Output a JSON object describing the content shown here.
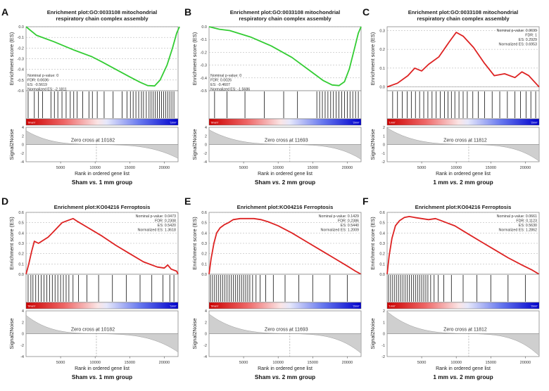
{
  "chart_data": [
    {
      "type": "line",
      "panel_label": "A",
      "title": [
        "Enrichment plot:GO:0033108 mitochondrial",
        "respiratory chain complex assembly"
      ],
      "ylabel": "Enrichment score (ES)",
      "ylim": [
        -0.6,
        0.0
      ],
      "yticks": [
        "0.0",
        "-0.1",
        "-0.2",
        "-0.3",
        "-0.4",
        "-0.5",
        "-0.6"
      ],
      "curve_color": "#33cc33",
      "stats_position": "bottom-left",
      "stats": [
        "Nominal p-value: 0",
        "FDR: 0.0036",
        "ES: -0.5619",
        "Normalized ES: -2.1811"
      ],
      "es_curve": {
        "x": [
          0,
          1500,
          4000,
          7000,
          9500,
          11000,
          13000,
          15000,
          16500,
          17600,
          18600,
          19400,
          20400,
          21200,
          21800,
          22200
        ],
        "y": [
          0,
          -0.08,
          -0.14,
          -0.22,
          -0.28,
          -0.33,
          -0.4,
          -0.47,
          -0.52,
          -0.552,
          -0.555,
          -0.5,
          -0.36,
          -0.2,
          -0.06,
          0
        ]
      },
      "hits": {
        "x": [
          300,
          1200,
          1800,
          2400,
          3600,
          4100,
          4600,
          5200,
          5800,
          6400,
          6900,
          7400,
          8200,
          9100,
          9600,
          10300,
          11300,
          12600,
          13900,
          14600,
          15100,
          15500,
          15900,
          16300,
          16700,
          17000,
          17400,
          17800,
          18100,
          18400,
          18700,
          19000,
          19300,
          19600,
          19900,
          20200,
          20500,
          20800,
          21100,
          21400
        ]
      },
      "ranking": {
        "pos_label": "'Sham'",
        "neg_label": "'1mm'",
        "ymin": -4,
        "ymax": 4,
        "yticks": [
          "4",
          "2",
          "0",
          "-2",
          "-4"
        ],
        "max_pos": 3.0,
        "max_neg": -3.0
      },
      "zero_cross_label": "Zero cross at 10182",
      "zero_cross": 10182,
      "n_genes": 22000,
      "xlabel": "Rank in ordered gene list",
      "xticks": [
        "5000",
        "10000",
        "15000",
        "20000"
      ],
      "caption_parts": [
        "Sham ",
        "vs.",
        " 1 mm group"
      ]
    },
    {
      "type": "line",
      "panel_label": "B",
      "title": [
        "Enrichment plot:GO:0033108 mitochondrial",
        "respiratory chain complex assembly"
      ],
      "ylabel": "Enrichment score (ES)",
      "ylim": [
        -0.5,
        0.0
      ],
      "yticks": [
        "0.0",
        "-0.1",
        "-0.2",
        "-0.3",
        "-0.4",
        "-0.5"
      ],
      "curve_color": "#33cc33",
      "stats_position": "bottom-left",
      "stats": [
        "Nominal p-value: 0",
        "FDR: 0.0026",
        "ES: -0.4607",
        "Normalized ES: -1.5686"
      ],
      "es_curve": {
        "x": [
          0,
          1500,
          3000,
          6000,
          9000,
          12000,
          14500,
          16500,
          17800,
          18800,
          19600,
          20300,
          21000,
          21600,
          22000
        ],
        "y": [
          0,
          -0.02,
          -0.03,
          -0.08,
          -0.15,
          -0.24,
          -0.34,
          -0.42,
          -0.455,
          -0.46,
          -0.43,
          -0.33,
          -0.18,
          -0.05,
          0
        ]
      },
      "hits": {
        "x": [
          800,
          2600,
          5200,
          8000,
          10800,
          12800,
          15600,
          16000,
          16400,
          16800,
          17200,
          17600,
          18000,
          18400,
          18800,
          19200,
          19600,
          20000,
          20400,
          20800,
          21200,
          21600
        ]
      },
      "ranking": {
        "pos_label": "'Sham'",
        "neg_label": "'2mm'",
        "ymin": -4,
        "ymax": 4,
        "yticks": [
          "4",
          "2",
          "0",
          "-2",
          "-4"
        ],
        "max_pos": 3.2,
        "max_neg": -3.2
      },
      "zero_cross_label": "Zero cross at 11693",
      "zero_cross": 11693,
      "n_genes": 22000,
      "xlabel": "Rank in ordered gene list",
      "xticks": [
        "5000",
        "10000",
        "15000",
        "20000"
      ],
      "caption_parts": [
        "Sham ",
        "vs.",
        " 2 mm group"
      ]
    },
    {
      "type": "line",
      "panel_label": "C",
      "title": [
        "Enrichment plot:GO:0033108 mitochondrial",
        "respiratory chain complex assembly"
      ],
      "ylabel": "Enrichment score (ES)",
      "ylim": [
        -0.02,
        0.32
      ],
      "yticks": [
        "0.3",
        "0.2",
        "0.1",
        "0.0"
      ],
      "curve_color": "#dd2222",
      "stats_position": "top-right",
      "stats": [
        "Nominal p-value: 0.9699",
        "FDR: 1",
        "ES: 0.2929",
        "Normalized ES: 0.6953"
      ],
      "es_curve": {
        "x": [
          0,
          1500,
          3000,
          4000,
          5000,
          6000,
          7500,
          9000,
          10000,
          11000,
          12500,
          14000,
          15500,
          17000,
          18500,
          19500,
          20500,
          21500,
          22000
        ],
        "y": [
          0,
          0.02,
          0.06,
          0.1,
          0.085,
          0.12,
          0.16,
          0.24,
          0.29,
          0.27,
          0.21,
          0.13,
          0.06,
          0.07,
          0.05,
          0.08,
          0.06,
          0.02,
          0
        ]
      },
      "hits": {
        "x": [
          800,
          1500,
          2200,
          2900,
          3500,
          4100,
          4700,
          5300,
          5900,
          6500,
          7100,
          7700,
          8300,
          8800,
          9300,
          9800,
          10400,
          11000,
          11600,
          12400,
          13200,
          14100,
          15200,
          16300,
          17400,
          18500,
          19300,
          20100,
          20800,
          21500
        ]
      },
      "ranking": {
        "pos_label": "'1mm'",
        "neg_label": "'2mm'",
        "ymin": -2,
        "ymax": 2,
        "yticks": [
          "2",
          "1",
          "0",
          "-1",
          "-2"
        ],
        "max_pos": 1.8,
        "max_neg": -1.8
      },
      "zero_cross_label": "Zero cross at 11812",
      "zero_cross": 11812,
      "n_genes": 22000,
      "xlabel": "Rank in ordered gene list",
      "xticks": [
        "5000",
        "10000",
        "15000",
        "20000"
      ],
      "caption_parts": [
        "1 mm ",
        "vs.",
        " 2 mm group"
      ]
    },
    {
      "type": "line",
      "panel_label": "D",
      "title": [
        "Enrichment plot:KO04216 Ferroptosis"
      ],
      "ylabel": "Enrichment score (ES)",
      "ylim": [
        0.0,
        0.6
      ],
      "yticks": [
        "0.6",
        "0.5",
        "0.4",
        "0.3",
        "0.2",
        "0.1",
        "0.0"
      ],
      "curve_color": "#dd2222",
      "stats_position": "top-right",
      "stats": [
        "Nominal p-value: 0.0473",
        "FDR: 0.2308",
        "ES: 0.5420",
        "Normalized ES: 1.3618"
      ],
      "es_curve": {
        "x": [
          0,
          400,
          800,
          1200,
          1800,
          2500,
          3200,
          3800,
          4500,
          5200,
          6000,
          6800,
          7500,
          9000,
          11000,
          13000,
          15000,
          17000,
          19000,
          20000,
          20500,
          21000,
          21800,
          22000
        ],
        "y": [
          0,
          0.1,
          0.22,
          0.32,
          0.3,
          0.33,
          0.36,
          0.4,
          0.45,
          0.5,
          0.52,
          0.54,
          0.51,
          0.45,
          0.37,
          0.28,
          0.2,
          0.12,
          0.07,
          0.06,
          0.09,
          0.05,
          0.03,
          0
        ]
      },
      "hits": {
        "x": [
          300,
          700,
          1000,
          1400,
          1800,
          2200,
          2600,
          3000,
          3400,
          3800,
          4200,
          4600,
          5000,
          5400,
          5800,
          6200,
          6800,
          7600,
          8800,
          10500,
          12500,
          14500,
          16500,
          18200,
          19800,
          20800,
          21400
        ]
      },
      "ranking": {
        "pos_label": "'Sham'",
        "neg_label": "'1mm'",
        "ymin": -4,
        "ymax": 4,
        "yticks": [
          "4",
          "2",
          "0",
          "-2",
          "-4"
        ],
        "max_pos": 3.0,
        "max_neg": -3.0
      },
      "zero_cross_label": "Zero cross at 10182",
      "zero_cross": 10182,
      "n_genes": 22000,
      "xlabel": "Rank in ordered gene list",
      "xticks": [
        "5000",
        "10000",
        "15000",
        "20000"
      ],
      "caption_parts": [
        "Sham ",
        "vs.",
        " 1 mm group"
      ]
    },
    {
      "type": "line",
      "panel_label": "E",
      "title": [
        "Enrichment plot:KO04216 Ferroptosis"
      ],
      "ylabel": "Enrichment score (ES)",
      "ylim": [
        0.0,
        0.6
      ],
      "yticks": [
        "0.6",
        "0.5",
        "0.4",
        "0.3",
        "0.2",
        "0.1",
        "0.0"
      ],
      "curve_color": "#dd2222",
      "stats_position": "top-right",
      "stats": [
        "Nominal p-value: 0.1429",
        "FDR: 0.2386",
        "ES: 0.5440",
        "Normalized ES: 1.2009"
      ],
      "es_curve": {
        "x": [
          0,
          300,
          700,
          1100,
          1600,
          2200,
          2800,
          3500,
          4500,
          5500,
          6500,
          7500,
          8500,
          10000,
          12000,
          14000,
          16000,
          18000,
          20000,
          21200,
          22000
        ],
        "y": [
          0,
          0.15,
          0.3,
          0.4,
          0.45,
          0.48,
          0.5,
          0.53,
          0.54,
          0.54,
          0.54,
          0.53,
          0.51,
          0.47,
          0.4,
          0.32,
          0.24,
          0.16,
          0.08,
          0.03,
          0
        ]
      },
      "hits": {
        "x": [
          200,
          500,
          800,
          1100,
          1400,
          1700,
          2000,
          2300,
          2600,
          2900,
          3200,
          3500,
          3800,
          4100,
          4400,
          4700,
          5000,
          5300,
          5600,
          5900,
          6300,
          6800,
          7400,
          8200,
          9300,
          11000,
          13000,
          15000,
          17500,
          20000
        ]
      },
      "ranking": {
        "pos_label": "'Sham'",
        "neg_label": "'2mm'",
        "ymin": -4,
        "ymax": 4,
        "yticks": [
          "4",
          "2",
          "0",
          "-2",
          "-4"
        ],
        "max_pos": 3.2,
        "max_neg": -3.2
      },
      "zero_cross_label": "Zero cross at 11693",
      "zero_cross": 11693,
      "n_genes": 22000,
      "xlabel": "Rank in ordered gene list",
      "xticks": [
        "5000",
        "10000",
        "15000",
        "20000"
      ],
      "caption_parts": [
        "Sham ",
        "vs.",
        " 2 mm group"
      ]
    },
    {
      "type": "line",
      "panel_label": "F",
      "title": [
        "Enrichment plot:KO04216 Ferroptosis"
      ],
      "ylabel": "Enrichment score (ES)",
      "ylim": [
        0.0,
        0.6
      ],
      "yticks": [
        "0.6",
        "0.5",
        "0.4",
        "0.3",
        "0.2",
        "0.1",
        "0.0"
      ],
      "curve_color": "#dd2222",
      "stats_position": "top-right",
      "stats": [
        "Nominal p-value: 0.0661",
        "FDR: 0.1123",
        "ES: 0.5630",
        "Normalized ES: 1.2862"
      ],
      "es_curve": {
        "x": [
          0,
          300,
          700,
          1200,
          1800,
          2500,
          3200,
          4000,
          5000,
          6000,
          7000,
          7800,
          8600,
          9800,
          11500,
          13500,
          15500,
          17500,
          19500,
          21000,
          22000
        ],
        "y": [
          0,
          0.18,
          0.35,
          0.47,
          0.52,
          0.55,
          0.56,
          0.55,
          0.54,
          0.53,
          0.54,
          0.52,
          0.5,
          0.47,
          0.4,
          0.32,
          0.24,
          0.16,
          0.09,
          0.04,
          0
        ]
      },
      "hits": {
        "x": [
          200,
          500,
          800,
          1100,
          1400,
          1700,
          2000,
          2300,
          2600,
          2900,
          3200,
          3500,
          3800,
          4100,
          4400,
          4700,
          5000,
          5300,
          5600,
          5900,
          6300,
          6800,
          7400,
          8200,
          9300,
          11000,
          13000,
          15000,
          17500,
          20000
        ]
      },
      "ranking": {
        "pos_label": "'1mm'",
        "neg_label": "'2mm'",
        "ymin": -2,
        "ymax": 2,
        "yticks": [
          "2",
          "1",
          "0",
          "-1",
          "-2"
        ],
        "max_pos": 1.8,
        "max_neg": -1.8
      },
      "zero_cross_label": "Zero cross at 11812",
      "zero_cross": 11812,
      "n_genes": 22000,
      "xlabel": "Rank in ordered gene list",
      "xticks": [
        "5000",
        "10000",
        "15000",
        "20000"
      ],
      "caption_parts": [
        "1 mm ",
        "vs.",
        " 2 mm group"
      ]
    }
  ]
}
